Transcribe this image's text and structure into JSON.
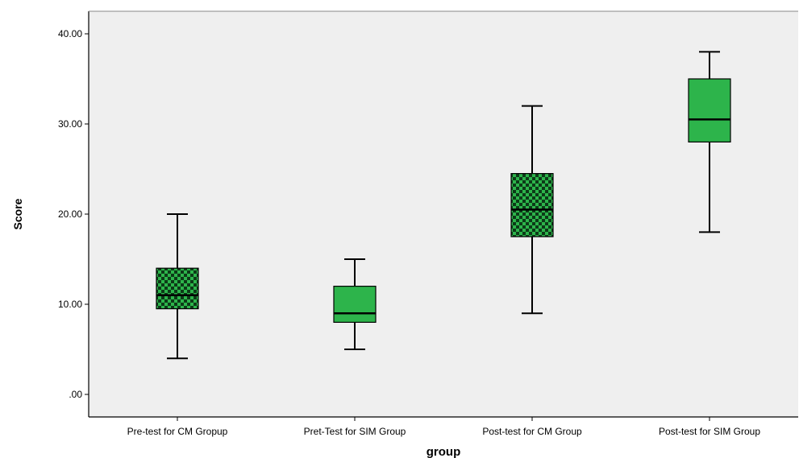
{
  "chart_data": {
    "type": "boxplot",
    "xlabel": "group",
    "ylabel": "Score",
    "ylim": [
      -2.5,
      42.5
    ],
    "yticks": [
      0,
      10,
      20,
      30,
      40
    ],
    "ytick_labels": [
      ".00",
      "10.00",
      "20.00",
      "30.00",
      "40.00"
    ],
    "grid": false,
    "legend": "none",
    "categories": [
      "Pre-test for CM Gropup",
      "Pret-Test for SIM Group",
      "Post-test for CM Group",
      "Post-test for SIM Group"
    ],
    "boxes": [
      {
        "min": 4,
        "q1": 9.5,
        "median": 11,
        "q3": 14,
        "max": 20,
        "pattern": "checker"
      },
      {
        "min": 5,
        "q1": 8,
        "median": 9,
        "q3": 12,
        "max": 15,
        "pattern": "solid"
      },
      {
        "min": 9,
        "q1": 17.5,
        "median": 20.5,
        "q3": 24.5,
        "max": 32,
        "pattern": "checker"
      },
      {
        "min": 18,
        "q1": 28,
        "median": 30.5,
        "q3": 35,
        "max": 38,
        "pattern": "solid"
      }
    ],
    "colors": {
      "plot_background": "#efefef",
      "box_fill": "#2db44b",
      "checker_dark": "#0d3a18",
      "line": "#000000"
    }
  }
}
